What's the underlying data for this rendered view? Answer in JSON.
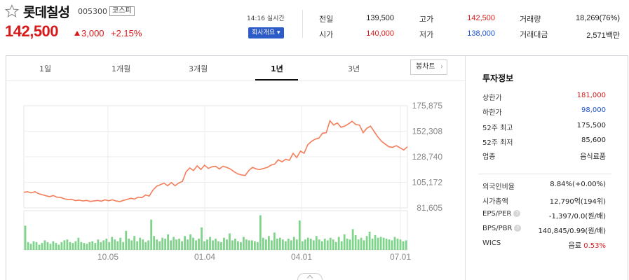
{
  "stock": {
    "name": "롯데칠성",
    "code": "005300",
    "market": "코스피",
    "price": "142,500",
    "change": "3,000",
    "change_pct": "+2.15%",
    "time": "14:16 실시간",
    "corp_button": "회사개요 ▾"
  },
  "quotes": [
    {
      "label": "전일",
      "value": "139,500",
      "color": "#222222"
    },
    {
      "label": "고가",
      "value": "142,500",
      "color": "#d61a1a"
    },
    {
      "label": "거래량",
      "value": "18,269(76%)",
      "color": "#222222"
    },
    {
      "label": "시가",
      "value": "140,000",
      "color": "#d61a1a"
    },
    {
      "label": "저가",
      "value": "138,000",
      "color": "#1d52c8"
    },
    {
      "label": "거래대금",
      "value": "2,571백만",
      "color": "#222222"
    }
  ],
  "tabs": [
    "1일",
    "1개월",
    "3개월",
    "1년",
    "3년"
  ],
  "active_tab": "1년",
  "bong_button": "봉차트",
  "chart_data": {
    "type": "line",
    "y_ticks": [
      "175,875",
      "152,308",
      "128,740",
      "105,172",
      "81,605"
    ],
    "ylim": [
      81605,
      175875
    ],
    "x_ticks": [
      "10.05",
      "01.04",
      "04.01",
      "07.01"
    ],
    "series": [
      {
        "values": [
          96000,
          96500,
          95500,
          96500,
          94800,
          93800,
          92800,
          92000,
          93000,
          91500,
          91200,
          90000,
          89200,
          89500,
          88300,
          88800,
          88000,
          88500,
          87600,
          88000,
          88500,
          87800,
          89000,
          88200,
          89000,
          88000,
          87500,
          88500,
          89500,
          90500,
          89800,
          91500,
          91000,
          93500,
          92500,
          98000,
          101500,
          103000,
          104500,
          102000,
          105000,
          102000,
          104500,
          106000,
          115000,
          118500,
          116000,
          120500,
          117000,
          121000,
          118000,
          119500,
          120000,
          117500,
          120000,
          119000,
          117500,
          115000,
          113000,
          112000,
          111500,
          116000,
          119000,
          117500,
          117000,
          118000,
          119000,
          121000,
          122000,
          126000,
          124000,
          126500,
          125500,
          132000,
          128000,
          134000,
          132000,
          140000,
          143000,
          145000,
          146000,
          150500,
          151000,
          162000,
          158000,
          160000,
          156000,
          157000,
          159000,
          161500,
          158500,
          158000,
          151000,
          155000,
          157000,
          152000,
          147000,
          143000,
          140500,
          138000,
          137500,
          139000,
          137000,
          135000,
          138000
        ]
      }
    ],
    "volume": [
      28,
      9,
      7,
      10,
      9,
      6,
      8,
      11,
      9,
      7,
      10,
      8,
      6,
      9,
      11,
      12,
      9,
      8,
      10,
      14,
      9,
      8,
      7,
      9,
      10,
      8,
      12,
      9,
      11,
      13,
      9,
      15,
      12,
      10,
      14,
      9,
      22,
      13,
      11,
      16,
      10,
      14,
      12,
      9,
      11,
      35,
      16,
      12,
      10,
      14,
      13,
      18,
      11,
      15,
      12,
      13,
      10,
      16,
      12,
      18,
      14,
      11,
      13,
      26,
      10,
      12,
      15,
      11,
      13,
      10,
      9,
      14,
      12,
      19,
      11,
      13,
      10,
      9,
      15,
      12,
      11,
      11,
      10,
      9,
      40,
      14,
      12,
      16,
      11,
      20,
      13,
      14,
      12,
      10,
      13,
      11,
      15,
      12,
      34,
      10,
      12,
      14,
      13,
      11,
      16,
      12,
      10,
      13,
      11,
      14,
      12,
      9,
      15,
      10,
      18,
      13,
      12,
      24,
      17,
      12,
      14,
      11,
      16,
      21,
      13,
      17,
      14,
      15,
      14,
      13,
      12,
      11,
      15,
      13,
      12,
      10,
      11
    ]
  },
  "invest": {
    "title": "투자정보",
    "rows": [
      {
        "label": "상한가",
        "value": "181,000",
        "color": "#d61a1a"
      },
      {
        "label": "하한가",
        "value": "98,000",
        "color": "#1d52c8"
      },
      {
        "label": "52주 최고",
        "value": "175,500",
        "color": "#222222"
      },
      {
        "label": "52주 최저",
        "value": "85,600",
        "color": "#222222"
      },
      {
        "label": "업종",
        "value": "음식료품",
        "color": "#222222"
      }
    ],
    "rows2": [
      {
        "label": "외국인비율",
        "value": "8.84%(+0.00%)",
        "help": false
      },
      {
        "label": "시가총액",
        "value": "12,790억(194위)",
        "help": false
      },
      {
        "label": "EPS/PER",
        "value": "-1,397/0.0(원/배)",
        "help": true
      },
      {
        "label": "BPS/PBR",
        "value": "140,845/0.99(원/배)",
        "help": true
      },
      {
        "label": "WICS",
        "value": "음료",
        "value2": "0.53%",
        "help": false
      }
    ]
  },
  "colors": {
    "up": "#d61a1a",
    "down": "#1d52c8",
    "line": "#f47d5a",
    "volume": "#7fd38a",
    "brand_button": "#2d5bc8"
  }
}
